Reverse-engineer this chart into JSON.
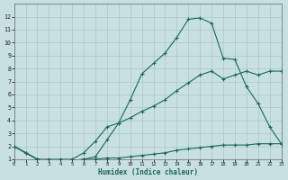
{
  "xlabel": "Humidex (Indice chaleur)",
  "bg_color": "#c8e0e0",
  "grid_color": "#a8c8c8",
  "line_color": "#1a6858",
  "xlim": [
    0,
    23
  ],
  "ylim": [
    1,
    13
  ],
  "xticks": [
    0,
    1,
    2,
    3,
    4,
    5,
    6,
    7,
    8,
    9,
    10,
    11,
    12,
    13,
    14,
    15,
    16,
    17,
    18,
    19,
    20,
    21,
    22,
    23
  ],
  "yticks": [
    1,
    2,
    3,
    4,
    5,
    6,
    7,
    8,
    9,
    10,
    11,
    12
  ],
  "line1_x": [
    0,
    1,
    2,
    3,
    4,
    5,
    6,
    7,
    8,
    9,
    10,
    11,
    12,
    13,
    14,
    15,
    16,
    17,
    18,
    19,
    20,
    21,
    22,
    23
  ],
  "line1_y": [
    2.0,
    1.5,
    1.0,
    0.9,
    0.9,
    0.9,
    1.0,
    1.0,
    1.1,
    1.1,
    1.2,
    1.3,
    1.4,
    1.5,
    1.7,
    1.8,
    1.9,
    2.0,
    2.1,
    2.1,
    2.1,
    2.2,
    2.2,
    2.2
  ],
  "line2_x": [
    0,
    1,
    2,
    3,
    4,
    5,
    6,
    7,
    8,
    9,
    10,
    11,
    12,
    13,
    14,
    15,
    16,
    17,
    18,
    19,
    20,
    21,
    22,
    23
  ],
  "line2_y": [
    2.0,
    1.5,
    1.0,
    1.0,
    1.0,
    1.0,
    1.5,
    2.4,
    3.5,
    3.8,
    4.2,
    4.7,
    5.1,
    5.6,
    6.3,
    6.9,
    7.5,
    7.8,
    7.2,
    7.5,
    7.8,
    7.5,
    7.8,
    7.8
  ],
  "line3_x": [
    0,
    1,
    2,
    3,
    4,
    5,
    6,
    7,
    8,
    9,
    10,
    11,
    12,
    13,
    14,
    15,
    16,
    17,
    18,
    19,
    20,
    21,
    22,
    23
  ],
  "line3_y": [
    2.0,
    1.5,
    1.0,
    0.9,
    0.9,
    0.9,
    1.0,
    1.2,
    2.5,
    3.8,
    5.6,
    7.6,
    8.4,
    9.2,
    10.4,
    11.8,
    11.9,
    11.5,
    8.8,
    8.7,
    6.6,
    5.3,
    3.5,
    2.2
  ]
}
